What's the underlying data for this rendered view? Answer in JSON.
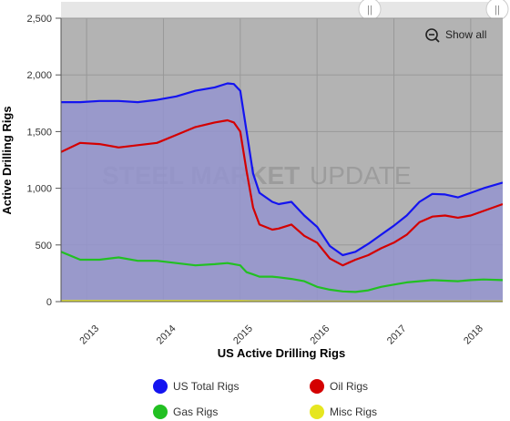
{
  "show_all_label": "Show all",
  "watermark": {
    "text_bold": "STEEL MARKET",
    "text_light": "UPDATE"
  },
  "colors": {
    "plot_background": "#b3b3b3",
    "total_fill": "#9494cf",
    "total_line": "#1414f0",
    "oil_line": "#d40000",
    "gas_line": "#22c022",
    "misc_line": "#e6e620"
  },
  "chart_data": {
    "type": "line",
    "title": "",
    "xlabel": "US Active Drilling Rigs",
    "ylabel": "Active Drilling Rigs",
    "x_range": [
      "2012-09",
      "2018-06"
    ],
    "ylim": [
      0,
      2500
    ],
    "y_ticks": [
      0,
      500,
      1000,
      1500,
      2000,
      2500
    ],
    "y_tick_labels": [
      "0",
      "500",
      "1,000",
      "1,500",
      "2,000",
      "2,500"
    ],
    "x_tick_labels": [
      "2013",
      "2014",
      "2015",
      "2016",
      "2017",
      "2018"
    ],
    "x_tick_positions": [
      "2013-01",
      "2014-01",
      "2015-01",
      "2016-01",
      "2017-01",
      "2018-01"
    ],
    "grid": true,
    "legend_position": "bottom",
    "legend": [
      "US Total Rigs",
      "Oil Rigs",
      "Gas Rigs",
      "Misc Rigs"
    ],
    "x": [
      "2012-09",
      "2012-12",
      "2013-03",
      "2013-06",
      "2013-09",
      "2013-12",
      "2014-03",
      "2014-06",
      "2014-09",
      "2014-11",
      "2014-12",
      "2015-01",
      "2015-02",
      "2015-03",
      "2015-04",
      "2015-06",
      "2015-07",
      "2015-09",
      "2015-11",
      "2016-01",
      "2016-03",
      "2016-05",
      "2016-07",
      "2016-09",
      "2016-11",
      "2017-01",
      "2017-03",
      "2017-05",
      "2017-07",
      "2017-09",
      "2017-11",
      "2018-01",
      "2018-03",
      "2018-06"
    ],
    "series": [
      {
        "name": "US Total Rigs",
        "values": [
          1760,
          1760,
          1770,
          1770,
          1760,
          1780,
          1810,
          1860,
          1890,
          1925,
          1920,
          1860,
          1500,
          1130,
          960,
          880,
          860,
          880,
          760,
          660,
          490,
          410,
          440,
          510,
          590,
          670,
          760,
          880,
          950,
          945,
          920,
          960,
          1000,
          1050
        ]
      },
      {
        "name": "Oil Rigs",
        "values": [
          1320,
          1400,
          1390,
          1360,
          1380,
          1400,
          1470,
          1540,
          1580,
          1600,
          1580,
          1500,
          1150,
          830,
          680,
          635,
          645,
          680,
          580,
          520,
          380,
          320,
          370,
          410,
          470,
          520,
          590,
          700,
          750,
          760,
          740,
          760,
          800,
          860
        ]
      },
      {
        "name": "Gas Rigs",
        "values": [
          440,
          370,
          370,
          390,
          360,
          360,
          340,
          320,
          330,
          340,
          330,
          320,
          260,
          240,
          220,
          220,
          215,
          200,
          180,
          130,
          105,
          90,
          85,
          100,
          130,
          150,
          170,
          180,
          190,
          185,
          180,
          190,
          195,
          190
        ]
      },
      {
        "name": "Misc Rigs",
        "values": [
          5,
          5,
          5,
          5,
          5,
          5,
          5,
          5,
          5,
          5,
          5,
          5,
          4,
          3,
          3,
          3,
          3,
          3,
          2,
          2,
          1,
          1,
          1,
          1,
          1,
          1,
          1,
          1,
          1,
          1,
          1,
          1,
          1,
          1
        ]
      }
    ]
  }
}
